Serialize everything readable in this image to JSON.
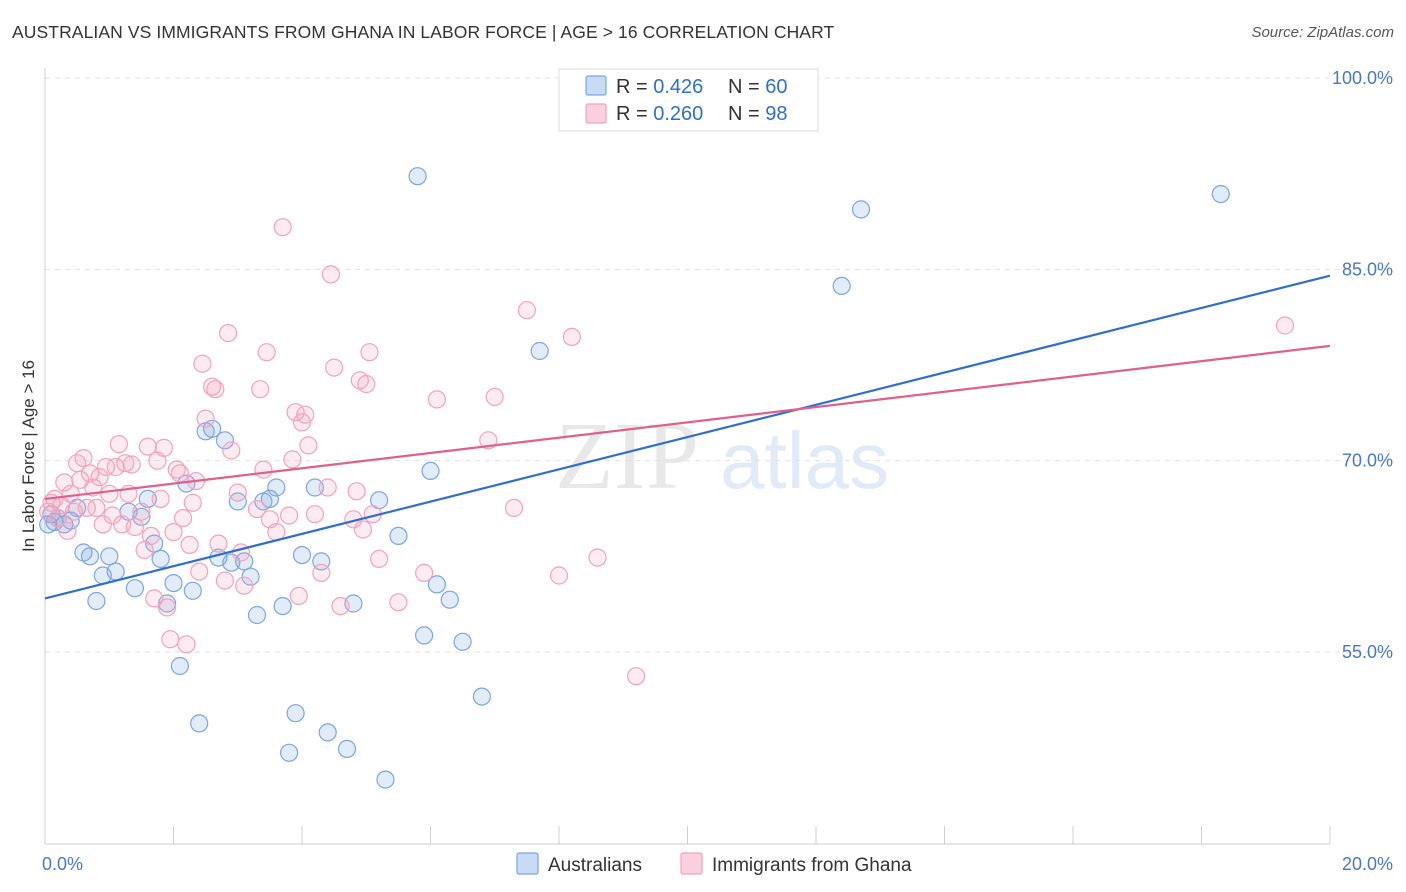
{
  "title": "AUSTRALIAN VS IMMIGRANTS FROM GHANA IN LABOR FORCE | AGE > 16 CORRELATION CHART",
  "source": "Source: ZipAtlas.com",
  "watermark": {
    "zip": "ZIP",
    "atlas": "atlas"
  },
  "legend": {
    "rows": [
      {
        "r_label": "R = ",
        "r_value": "0.426",
        "n_label": "N = ",
        "n_value": "60"
      },
      {
        "r_label": "R = ",
        "r_value": "0.260",
        "n_label": "N = ",
        "n_value": "98"
      }
    ]
  },
  "chart_data": {
    "type": "scatter",
    "title": "AUSTRALIAN VS IMMIGRANTS FROM GHANA IN LABOR FORCE | AGE > 16 CORRELATION CHART",
    "xlabel": "",
    "ylabel": "In Labor Force | Age > 16",
    "xlim": [
      0,
      20
    ],
    "ylim": [
      40,
      103
    ],
    "x_tick_labels": [
      {
        "value": 0,
        "label": "0.0%"
      },
      {
        "value": 20,
        "label": "20.0%"
      }
    ],
    "y_tick_labels": [
      {
        "value": 55,
        "label": "55.0%"
      },
      {
        "value": 70,
        "label": "70.0%"
      },
      {
        "value": 85,
        "label": "85.0%"
      },
      {
        "value": 100,
        "label": "100.0%"
      }
    ],
    "grid": true,
    "legend_position": "top-center",
    "series": [
      {
        "name": "Australians",
        "color": "#7ba6e0",
        "line_color": "#2f6fcc",
        "r": 0.426,
        "n": 60,
        "trend": [
          [
            0,
            59.2
          ],
          [
            20,
            84.5
          ]
        ],
        "points": [
          [
            0.05,
            65.0
          ],
          [
            0.1,
            65.8
          ],
          [
            0.15,
            65.2
          ],
          [
            0.2,
            65.5
          ],
          [
            0.3,
            65.0
          ],
          [
            0.4,
            65.3
          ],
          [
            0.5,
            66.3
          ],
          [
            0.6,
            62.8
          ],
          [
            0.7,
            62.5
          ],
          [
            0.8,
            59.0
          ],
          [
            0.9,
            61.0
          ],
          [
            1.0,
            62.5
          ],
          [
            1.1,
            61.3
          ],
          [
            1.3,
            66.0
          ],
          [
            1.4,
            60.0
          ],
          [
            1.5,
            65.6
          ],
          [
            1.6,
            67.0
          ],
          [
            1.7,
            63.5
          ],
          [
            1.8,
            62.3
          ],
          [
            1.9,
            58.8
          ],
          [
            2.0,
            60.4
          ],
          [
            2.1,
            53.9
          ],
          [
            2.2,
            68.2
          ],
          [
            2.3,
            59.8
          ],
          [
            2.4,
            49.4
          ],
          [
            2.5,
            72.3
          ],
          [
            2.6,
            72.5
          ],
          [
            2.7,
            62.4
          ],
          [
            2.8,
            71.6
          ],
          [
            2.9,
            62.0
          ],
          [
            3.0,
            66.8
          ],
          [
            3.1,
            62.1
          ],
          [
            3.2,
            60.9
          ],
          [
            3.3,
            57.9
          ],
          [
            3.4,
            66.8
          ],
          [
            3.5,
            67.0
          ],
          [
            3.6,
            67.9
          ],
          [
            3.7,
            58.6
          ],
          [
            3.8,
            47.1
          ],
          [
            3.9,
            50.2
          ],
          [
            4.0,
            62.6
          ],
          [
            4.2,
            67.9
          ],
          [
            4.3,
            62.1
          ],
          [
            4.4,
            48.7
          ],
          [
            4.7,
            47.4
          ],
          [
            4.8,
            58.8
          ],
          [
            5.2,
            66.9
          ],
          [
            5.3,
            45.0
          ],
          [
            5.5,
            64.1
          ],
          [
            5.8,
            92.3
          ],
          [
            5.9,
            56.3
          ],
          [
            6.0,
            69.2
          ],
          [
            6.1,
            60.3
          ],
          [
            6.3,
            59.1
          ],
          [
            6.5,
            55.8
          ],
          [
            6.8,
            51.5
          ],
          [
            7.7,
            78.6
          ],
          [
            12.4,
            83.7
          ],
          [
            12.7,
            89.7
          ],
          [
            18.3,
            90.9
          ]
        ]
      },
      {
        "name": "Immigrants from Ghana",
        "color": "#f2a3bc",
        "line_color": "#e0608c",
        "r": 0.26,
        "n": 98,
        "trend": [
          [
            0,
            67.0
          ],
          [
            20,
            79.0
          ]
        ],
        "points": [
          [
            0.05,
            66.0
          ],
          [
            0.1,
            66.7
          ],
          [
            0.15,
            67.0
          ],
          [
            0.2,
            65.5
          ],
          [
            0.25,
            66.5
          ],
          [
            0.3,
            68.3
          ],
          [
            0.35,
            64.5
          ],
          [
            0.4,
            67.4
          ],
          [
            0.45,
            66.0
          ],
          [
            0.5,
            69.8
          ],
          [
            0.55,
            68.5
          ],
          [
            0.6,
            70.2
          ],
          [
            0.65,
            66.3
          ],
          [
            0.7,
            69.0
          ],
          [
            0.75,
            67.9
          ],
          [
            0.8,
            66.3
          ],
          [
            0.85,
            68.7
          ],
          [
            0.9,
            65.0
          ],
          [
            0.95,
            69.5
          ],
          [
            1.0,
            67.4
          ],
          [
            1.05,
            65.7
          ],
          [
            1.1,
            69.5
          ],
          [
            1.15,
            71.3
          ],
          [
            1.2,
            65.0
          ],
          [
            1.25,
            69.8
          ],
          [
            1.3,
            67.4
          ],
          [
            1.35,
            69.7
          ],
          [
            1.4,
            64.8
          ],
          [
            1.5,
            66.0
          ],
          [
            1.55,
            63.0
          ],
          [
            1.6,
            71.1
          ],
          [
            1.65,
            64.1
          ],
          [
            1.7,
            59.2
          ],
          [
            1.75,
            70.0
          ],
          [
            1.8,
            67.0
          ],
          [
            1.85,
            71.0
          ],
          [
            1.9,
            58.5
          ],
          [
            1.95,
            56.0
          ],
          [
            2.0,
            64.4
          ],
          [
            2.05,
            69.3
          ],
          [
            2.1,
            69.0
          ],
          [
            2.15,
            65.5
          ],
          [
            2.2,
            55.6
          ],
          [
            2.25,
            63.4
          ],
          [
            2.3,
            66.7
          ],
          [
            2.35,
            68.4
          ],
          [
            2.4,
            61.3
          ],
          [
            2.45,
            77.6
          ],
          [
            2.5,
            73.3
          ],
          [
            2.6,
            75.8
          ],
          [
            2.65,
            75.6
          ],
          [
            2.7,
            63.5
          ],
          [
            2.8,
            60.6
          ],
          [
            2.85,
            80.0
          ],
          [
            2.9,
            70.8
          ],
          [
            3.0,
            67.5
          ],
          [
            3.05,
            62.8
          ],
          [
            3.1,
            60.2
          ],
          [
            3.3,
            66.2
          ],
          [
            3.35,
            75.6
          ],
          [
            3.4,
            69.3
          ],
          [
            3.45,
            78.5
          ],
          [
            3.5,
            65.4
          ],
          [
            3.6,
            64.4
          ],
          [
            3.7,
            88.3
          ],
          [
            3.8,
            65.7
          ],
          [
            3.85,
            70.1
          ],
          [
            3.9,
            73.8
          ],
          [
            3.95,
            59.4
          ],
          [
            4.0,
            73.0
          ],
          [
            4.05,
            73.6
          ],
          [
            4.1,
            71.2
          ],
          [
            4.2,
            65.8
          ],
          [
            4.3,
            61.2
          ],
          [
            4.4,
            67.9
          ],
          [
            4.45,
            84.6
          ],
          [
            4.5,
            77.3
          ],
          [
            4.6,
            58.6
          ],
          [
            4.8,
            65.4
          ],
          [
            4.85,
            67.6
          ],
          [
            4.9,
            76.3
          ],
          [
            4.95,
            64.6
          ],
          [
            5.0,
            76.0
          ],
          [
            5.05,
            78.5
          ],
          [
            5.1,
            65.8
          ],
          [
            5.2,
            62.3
          ],
          [
            5.5,
            58.9
          ],
          [
            5.9,
            61.2
          ],
          [
            6.1,
            74.8
          ],
          [
            6.9,
            71.6
          ],
          [
            7.0,
            75.0
          ],
          [
            7.3,
            66.3
          ],
          [
            7.5,
            81.8
          ],
          [
            8.0,
            61.0
          ],
          [
            8.2,
            79.7
          ],
          [
            8.6,
            62.4
          ],
          [
            9.2,
            53.1
          ],
          [
            19.3,
            80.6
          ]
        ]
      }
    ]
  }
}
